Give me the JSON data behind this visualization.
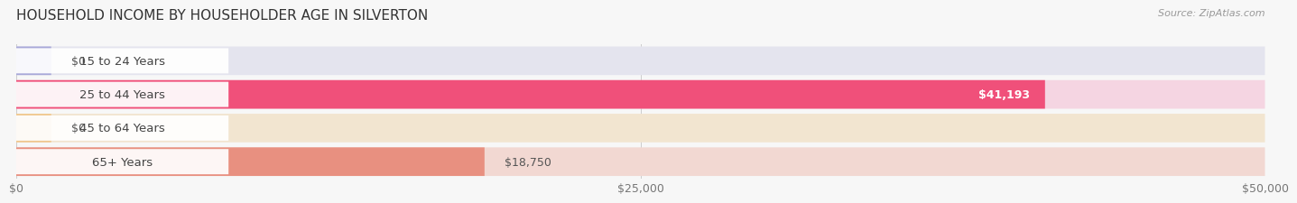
{
  "title": "HOUSEHOLD INCOME BY HOUSEHOLDER AGE IN SILVERTON",
  "source": "Source: ZipAtlas.com",
  "categories": [
    "15 to 24 Years",
    "25 to 44 Years",
    "45 to 64 Years",
    "65+ Years"
  ],
  "values": [
    0,
    41193,
    0,
    18750
  ],
  "bar_colors": [
    "#a8a8d8",
    "#f0507a",
    "#f0c890",
    "#e89080"
  ],
  "bg_colors": [
    "#e4e4ee",
    "#f5d5e2",
    "#f2e5d0",
    "#f2d8d2"
  ],
  "value_labels": [
    "$0",
    "$41,193",
    "$0",
    "$18,750"
  ],
  "value_inside": [
    false,
    true,
    false,
    false
  ],
  "xlim": [
    0,
    50000
  ],
  "xticks": [
    0,
    25000,
    50000
  ],
  "xticklabels": [
    "$0",
    "$25,000",
    "$50,000"
  ],
  "background_color": "#f7f7f7",
  "title_fontsize": 11,
  "label_fontsize": 9.5,
  "value_fontsize": 9,
  "tick_fontsize": 9
}
